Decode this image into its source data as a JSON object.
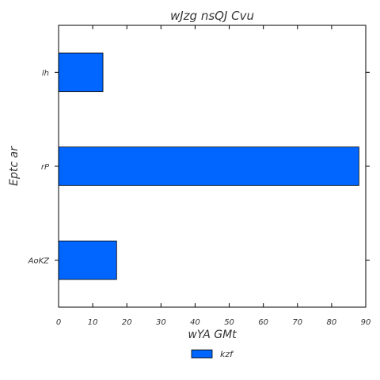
{
  "chart_data": {
    "type": "bar",
    "orientation": "horizontal",
    "title": "wJzg nsQJ Cvu",
    "xlabel": "wYA GMt",
    "ylabel": "Eptc ar",
    "categories": [
      "lh",
      "rP",
      "AoKZ"
    ],
    "series": [
      {
        "name": "kzf",
        "values": [
          13,
          88,
          17
        ],
        "color": "#0066ff"
      }
    ],
    "xlim": [
      0,
      90
    ],
    "xticks": [
      0,
      10,
      20,
      30,
      40,
      50,
      60,
      70,
      80,
      90
    ],
    "grid": false,
    "legend_position": "bottom-center"
  }
}
